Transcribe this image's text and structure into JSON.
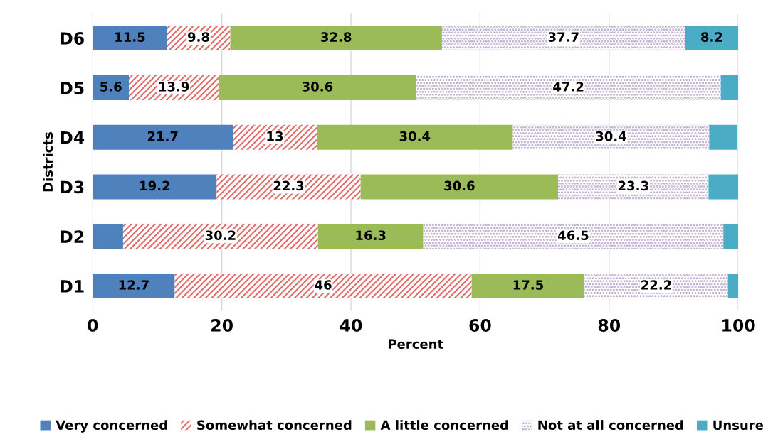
{
  "chart_data": {
    "type": "bar",
    "orientation": "horizontal",
    "stacked": true,
    "xlabel": "Percent",
    "ylabel": "Districts",
    "categories": [
      "D6",
      "D5",
      "D4",
      "D3",
      "D2",
      "D1"
    ],
    "series": [
      {
        "name": "Very concerned",
        "color": "#4f81bd",
        "values": [
          11.5,
          5.6,
          21.7,
          19.2,
          4.7,
          12.7
        ],
        "value_labels": [
          "11.5",
          "5.6",
          "21.7",
          "19.2",
          null,
          "12.7"
        ]
      },
      {
        "name": "Somewhat concerned",
        "color": "#e46c6c",
        "values": [
          9.8,
          13.9,
          13,
          22.3,
          30.2,
          46
        ],
        "value_labels": [
          "9.8",
          "13.9",
          "13",
          "22.3",
          "30.2",
          "46"
        ]
      },
      {
        "name": "A little concerned",
        "color": "#9bbb59",
        "values": [
          32.8,
          30.6,
          30.4,
          30.6,
          16.3,
          17.5
        ],
        "value_labels": [
          "32.8",
          "30.6",
          "30.4",
          "30.6",
          "16.3",
          "17.5"
        ]
      },
      {
        "name": "Not at all concerned",
        "color": "#b3a2c7",
        "values": [
          37.7,
          47.2,
          30.4,
          23.3,
          46.5,
          22.2
        ],
        "value_labels": [
          "37.7",
          "47.2",
          "30.4",
          "23.3",
          "46.5",
          "22.2"
        ]
      },
      {
        "name": "Unsure",
        "color": "#4bacc6",
        "values": [
          8.2,
          2.7,
          4.3,
          4.6,
          2.3,
          1.6
        ],
        "value_labels": [
          "8.2",
          null,
          null,
          null,
          null,
          null
        ]
      }
    ],
    "xlim": [
      0,
      100
    ],
    "xticks": [
      0,
      20,
      40,
      60,
      80,
      100
    ],
    "grid": "x",
    "legend": "bottom"
  }
}
